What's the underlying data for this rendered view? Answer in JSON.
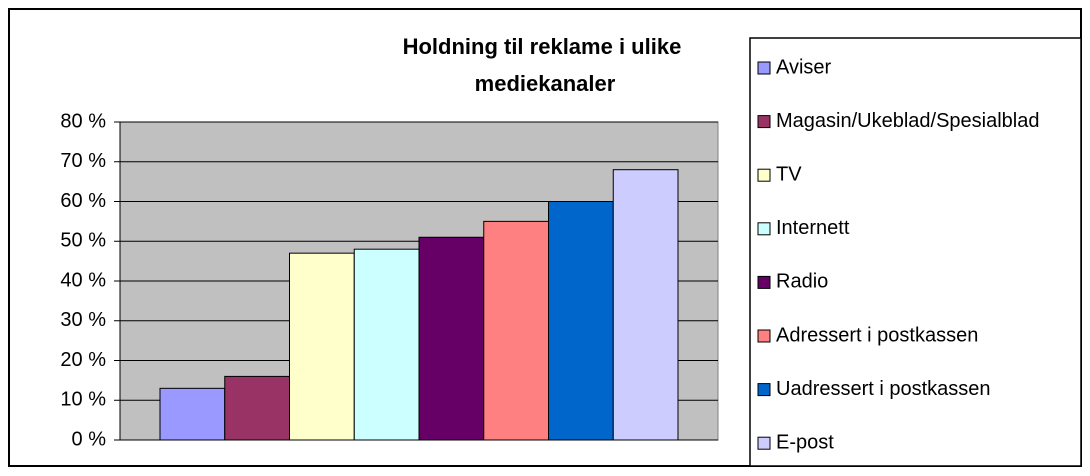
{
  "chart_data": {
    "type": "bar",
    "title": "Holdning til reklame i ulike mediekanaler",
    "categories": [
      null
    ],
    "series": [
      {
        "name": "Aviser",
        "color": "#9999ff",
        "values": [
          13
        ]
      },
      {
        "name": "Magasin/Ukeblad/Spesialblad",
        "color": "#993366",
        "values": [
          16
        ]
      },
      {
        "name": "TV",
        "color": "#ffffcc",
        "values": [
          47
        ]
      },
      {
        "name": "Internett",
        "color": "#ccffff",
        "values": [
          48
        ]
      },
      {
        "name": "Radio",
        "color": "#660066",
        "values": [
          51
        ]
      },
      {
        "name": "Adressert i postkassen",
        "color": "#ff8080",
        "values": [
          55
        ]
      },
      {
        "name": "Uadressert i postkassen",
        "color": "#0066cc",
        "values": [
          60
        ]
      },
      {
        "name": "E-post",
        "color": "#ccccff",
        "values": [
          68
        ]
      }
    ],
    "ylim": [
      0,
      80
    ],
    "yticks": [
      {
        "value": 0,
        "label": "0 %"
      },
      {
        "value": 10,
        "label": "10 %"
      },
      {
        "value": 20,
        "label": "20 %"
      },
      {
        "value": 30,
        "label": "30 %"
      },
      {
        "value": 40,
        "label": "40 %"
      },
      {
        "value": 50,
        "label": "50 %"
      },
      {
        "value": 60,
        "label": "60 %"
      },
      {
        "value": 70,
        "label": "70 %"
      },
      {
        "value": 80,
        "label": "80 %"
      }
    ],
    "grid": true,
    "plot_background": "#c0c0c0"
  }
}
